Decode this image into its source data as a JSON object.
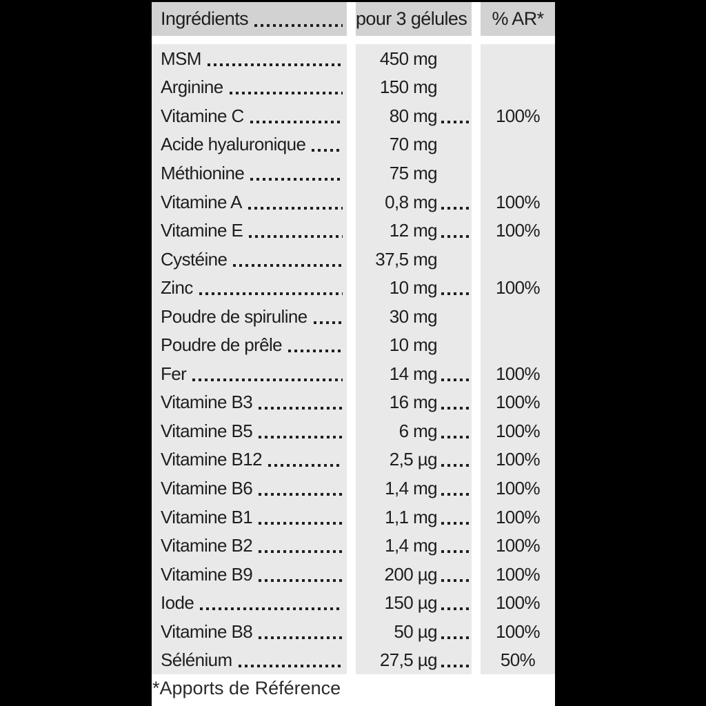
{
  "page": {
    "background_color": "#000000",
    "header_bg_color": "#d2d2d2",
    "body_bg_color": "#e9e9e9",
    "gap_color": "#ffffff",
    "text_color": "#1e1e1e"
  },
  "table": {
    "header": {
      "col1": "Ingrédients",
      "col2": "pour 3 gélules",
      "col3": "% AR*"
    },
    "rows": [
      {
        "name": "MSM",
        "amount": "450 mg",
        "ar": ""
      },
      {
        "name": "Arginine",
        "amount": "150 mg",
        "ar": ""
      },
      {
        "name": "Vitamine C",
        "amount": "80 mg",
        "ar": "100%"
      },
      {
        "name": "Acide hyaluronique",
        "amount": "70 mg",
        "ar": ""
      },
      {
        "name": "Méthionine",
        "amount": "75 mg",
        "ar": ""
      },
      {
        "name": "Vitamine A",
        "amount": "0,8 mg",
        "ar": "100%"
      },
      {
        "name": "Vitamine E",
        "amount": "12 mg",
        "ar": "100%"
      },
      {
        "name": "Cystéine",
        "amount": "37,5 mg",
        "ar": ""
      },
      {
        "name": "Zinc",
        "amount": "10 mg",
        "ar": "100%"
      },
      {
        "name": "Poudre de spiruline",
        "amount": "30 mg",
        "ar": ""
      },
      {
        "name": "Poudre de prêle",
        "amount": "10 mg",
        "ar": ""
      },
      {
        "name": "Fer",
        "amount": "14 mg",
        "ar": "100%"
      },
      {
        "name": "Vitamine B3",
        "amount": "16 mg",
        "ar": "100%"
      },
      {
        "name": "Vitamine B5",
        "amount": "6 mg",
        "ar": "100%"
      },
      {
        "name": "Vitamine B12",
        "amount": "2,5 µg",
        "ar": "100%"
      },
      {
        "name": "Vitamine B6",
        "amount": "1,4 mg",
        "ar": "100%"
      },
      {
        "name": "Vitamine B1",
        "amount": "1,1 mg",
        "ar": "100%"
      },
      {
        "name": "Vitamine B2",
        "amount": "1,4 mg",
        "ar": "100%"
      },
      {
        "name": "Vitamine B9",
        "amount": "200 µg",
        "ar": "100%"
      },
      {
        "name": "Iode",
        "amount": "150 µg",
        "ar": "100%"
      },
      {
        "name": "Vitamine B8",
        "amount": "50 µg",
        "ar": "100%"
      },
      {
        "name": "Sélénium",
        "amount": "27,5 µg",
        "ar": "50%"
      }
    ],
    "footnote": "*Apports de Référence"
  }
}
